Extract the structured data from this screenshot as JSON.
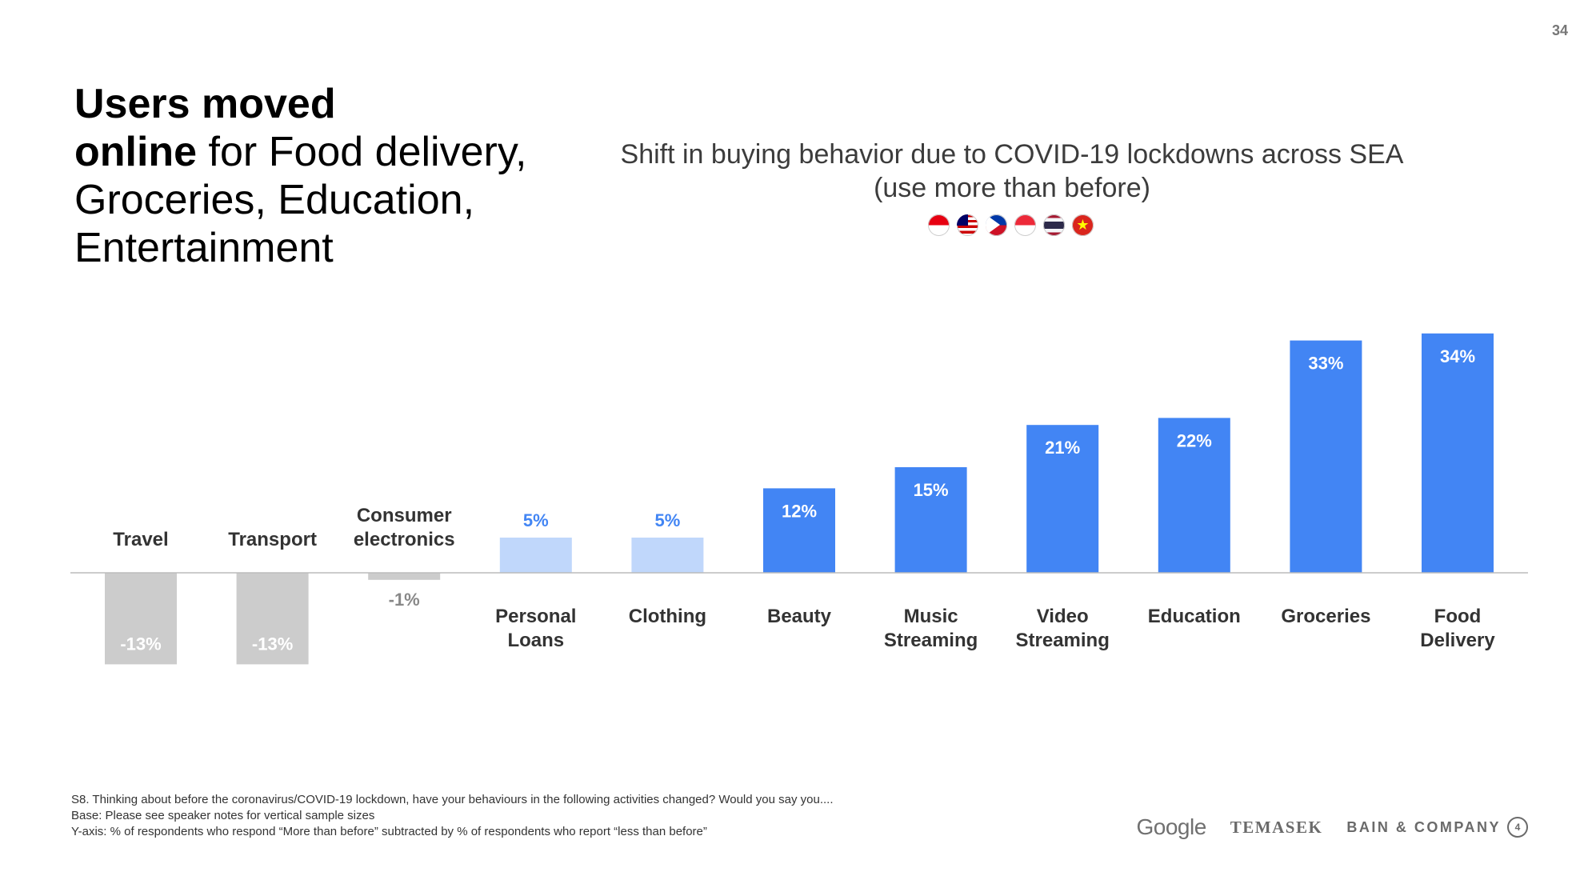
{
  "page_number": "34",
  "headline": {
    "line1_bold": "Users moved",
    "line2_bold": "online",
    "line2_rest": " for Food delivery,",
    "line3": "Groceries, Education,",
    "line4": "Entertainment"
  },
  "flags": [
    "Indonesia",
    "Malaysia",
    "Philippines",
    "Singapore",
    "Thailand",
    "Vietnam"
  ],
  "colors": {
    "positive_dark": "#4285f4",
    "positive_light": "#c0d7fb",
    "negative": "#cccccc",
    "label_positive": "#4285f4",
    "label_negative": "#888888",
    "axis": "#bbbbbb"
  },
  "chart_data": {
    "type": "bar",
    "title": "Shift in buying behavior due to COVID-19 lockdowns across SEA",
    "subtitle": "(use more than before)",
    "categories": [
      [
        "Travel"
      ],
      [
        "Transport"
      ],
      [
        "Consumer",
        "electronics"
      ],
      [
        "Personal",
        "Loans"
      ],
      [
        "Clothing"
      ],
      [
        "Beauty"
      ],
      [
        "Music",
        "Streaming"
      ],
      [
        "Video",
        "Streaming"
      ],
      [
        "Education"
      ],
      [
        "Groceries"
      ],
      [
        "Food",
        "Delivery"
      ]
    ],
    "values": [
      -13,
      -13,
      -1,
      5,
      5,
      12,
      15,
      21,
      22,
      33,
      34
    ],
    "value_labels": [
      "-13%",
      "-13%",
      "-1%",
      "5%",
      "5%",
      "12%",
      "15%",
      "21%",
      "22%",
      "33%",
      "34%"
    ],
    "bar_style": [
      "negative",
      "negative",
      "negative",
      "light",
      "light",
      "dark",
      "dark",
      "dark",
      "dark",
      "dark",
      "dark"
    ],
    "ylabel": "% of respondents",
    "ylim": [
      -13,
      34
    ],
    "grid": false
  },
  "footnotes": [
    "S8. Thinking about before the coronavirus/COVID-19 lockdown, have your behaviours in the following activities changed? Would you say you....",
    "Base: Please see speaker notes for vertical sample sizes",
    "Y-axis: % of respondents who respond “More than before” subtracted by % of respondents who report “less than before”"
  ],
  "logos": {
    "google": "Google",
    "temasek": "TEMASEK",
    "bain": "BAIN & COMPANY",
    "bain_mark": "4"
  }
}
